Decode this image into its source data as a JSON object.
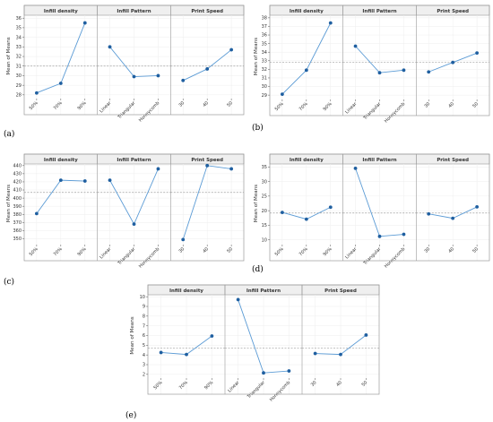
{
  "colors": {
    "line": "#5b9bd5",
    "point": "#1f5fa0",
    "mean": "#a0a0a0",
    "frame": "#9a9a9a",
    "grid": "#eeeeee",
    "header": "#efefef"
  },
  "chart_data": [
    {
      "type": "line",
      "label": "(a)",
      "ylabel": "Mean of Means",
      "ylim": [
        27.8,
        36.3
      ],
      "yticks": [
        28,
        29,
        30,
        31,
        32,
        33,
        34,
        35,
        36
      ],
      "mean": 31.0,
      "panels": [
        {
          "title": "Infill density",
          "categories": [
            "50%",
            "70%",
            "90%"
          ],
          "values": [
            28.2,
            29.2,
            35.5
          ]
        },
        {
          "title": "Infill Pattern",
          "categories": [
            "Linear",
            "Triangular",
            "Honeycomb"
          ],
          "values": [
            33.0,
            29.9,
            30.0
          ]
        },
        {
          "title": "Print Speed",
          "categories": [
            "30",
            "40",
            "50"
          ],
          "values": [
            29.5,
            30.7,
            32.7
          ]
        }
      ]
    },
    {
      "type": "line",
      "label": "(b)",
      "ylabel": "Mean of Means",
      "ylim": [
        28.7,
        38.3
      ],
      "yticks": [
        29,
        30,
        31,
        32,
        33,
        34,
        35,
        36,
        37,
        38
      ],
      "mean": 32.8,
      "panels": [
        {
          "title": "Infill density",
          "categories": [
            "50%",
            "70%",
            "90%"
          ],
          "values": [
            29.1,
            31.9,
            37.4
          ]
        },
        {
          "title": "Infill Pattern",
          "categories": [
            "Linear",
            "Triangular",
            "Honeycomb"
          ],
          "values": [
            34.7,
            31.6,
            31.9
          ]
        },
        {
          "title": "Print Speed",
          "categories": [
            "30",
            "40",
            "50"
          ],
          "values": [
            31.7,
            32.8,
            33.9
          ]
        }
      ]
    },
    {
      "type": "line",
      "label": "(c)",
      "ylabel": "Mean of Means",
      "ylim": [
        345,
        442
      ],
      "yticks": [
        350,
        360,
        370,
        380,
        390,
        400,
        410,
        420,
        430,
        440
      ],
      "mean": 407,
      "panels": [
        {
          "title": "Infill density",
          "categories": [
            "50%",
            "70%",
            "90%"
          ],
          "values": [
            381,
            422,
            421
          ]
        },
        {
          "title": "Infill Pattern",
          "categories": [
            "Linear",
            "Triangular",
            "Honeycomb"
          ],
          "values": [
            422,
            368,
            436
          ]
        },
        {
          "title": "Print Speed",
          "categories": [
            "30",
            "40",
            "50"
          ],
          "values": [
            349,
            440,
            436
          ]
        }
      ]
    },
    {
      "type": "line",
      "label": "(d)",
      "ylabel": "Mean of Means",
      "ylim": [
        9,
        36
      ],
      "yticks": [
        10,
        15,
        20,
        25,
        30,
        35
      ],
      "mean": 19.2,
      "panels": [
        {
          "title": "Infill density",
          "categories": [
            "50%",
            "70%",
            "90%"
          ],
          "values": [
            19.4,
            17.1,
            21.2
          ]
        },
        {
          "title": "Infill Pattern",
          "categories": [
            "Linear",
            "Triangular",
            "Honeycomb"
          ],
          "values": [
            34.5,
            11.2,
            11.9
          ]
        },
        {
          "title": "Print Speed",
          "categories": [
            "30",
            "40",
            "50"
          ],
          "values": [
            18.9,
            17.4,
            21.3
          ]
        }
      ]
    },
    {
      "type": "line",
      "label": "(e)",
      "ylabel": "Mean of Means",
      "ylim": [
        1.8,
        10.2
      ],
      "yticks": [
        2,
        3,
        4,
        5,
        6,
        7,
        8,
        9,
        10
      ],
      "mean": 4.7,
      "panels": [
        {
          "title": "Infill density",
          "categories": [
            "50%",
            "70%",
            "90%"
          ],
          "values": [
            4.25,
            4.05,
            5.95
          ]
        },
        {
          "title": "Infill Pattern",
          "categories": [
            "Linear",
            "Triangular",
            "Honeycomb"
          ],
          "values": [
            9.7,
            2.15,
            2.35
          ]
        },
        {
          "title": "Print Speed",
          "categories": [
            "30",
            "40",
            "50"
          ],
          "values": [
            4.15,
            4.05,
            6.05
          ]
        }
      ]
    }
  ]
}
